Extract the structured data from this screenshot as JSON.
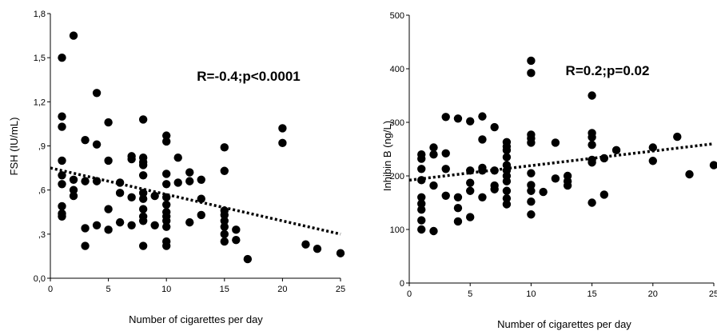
{
  "chart_data": [
    {
      "type": "scatter",
      "title": "",
      "xlabel": "Number of cigarettes per day",
      "ylabel": "FSH (IU/mL)",
      "xlim": [
        0,
        25
      ],
      "ylim": [
        0,
        1.8
      ],
      "xticks": [
        0,
        5,
        10,
        15,
        20,
        25
      ],
      "xtick_labels": [
        "0",
        "5",
        "10",
        "15",
        "20",
        "25"
      ],
      "yticks": [
        0,
        0.3,
        0.6,
        0.9,
        1.2,
        1.5,
        1.8
      ],
      "ytick_labels": [
        "0,0",
        ",3",
        ",6",
        ",9",
        "1,2",
        "1,5",
        "1,8"
      ],
      "grid": false,
      "annotation": "R=-0.4;p<0.0001",
      "trendline": {
        "style": "dotted",
        "x": [
          0,
          25
        ],
        "y": [
          0.75,
          0.3
        ]
      },
      "points": [
        [
          1,
          1.5
        ],
        [
          2,
          1.65
        ],
        [
          1,
          1.1
        ],
        [
          1,
          1.03
        ],
        [
          1,
          0.8
        ],
        [
          1,
          0.7
        ],
        [
          1,
          0.64
        ],
        [
          1,
          0.49
        ],
        [
          1,
          0.44
        ],
        [
          1,
          0.42
        ],
        [
          2,
          0.67
        ],
        [
          2,
          0.6
        ],
        [
          2,
          0.56
        ],
        [
          3,
          0.94
        ],
        [
          3,
          0.66
        ],
        [
          3,
          0.34
        ],
        [
          3,
          0.22
        ],
        [
          4,
          1.26
        ],
        [
          4,
          0.91
        ],
        [
          4,
          0.66
        ],
        [
          4,
          0.36
        ],
        [
          5,
          1.06
        ],
        [
          5,
          0.8
        ],
        [
          5,
          0.47
        ],
        [
          5,
          0.33
        ],
        [
          6,
          0.65
        ],
        [
          6,
          0.58
        ],
        [
          6,
          0.38
        ],
        [
          7,
          0.83
        ],
        [
          7,
          0.81
        ],
        [
          7,
          0.55
        ],
        [
          7,
          0.36
        ],
        [
          8,
          1.08
        ],
        [
          8,
          0.82
        ],
        [
          8,
          0.79
        ],
        [
          8,
          0.77
        ],
        [
          8,
          0.7
        ],
        [
          8,
          0.58
        ],
        [
          8,
          0.54
        ],
        [
          8,
          0.47
        ],
        [
          8,
          0.42
        ],
        [
          8,
          0.39
        ],
        [
          8,
          0.22
        ],
        [
          9,
          0.56
        ],
        [
          9,
          0.36
        ],
        [
          10,
          0.97
        ],
        [
          10,
          0.93
        ],
        [
          10,
          0.71
        ],
        [
          10,
          0.64
        ],
        [
          10,
          0.55
        ],
        [
          10,
          0.5
        ],
        [
          10,
          0.45
        ],
        [
          10,
          0.42
        ],
        [
          10,
          0.39
        ],
        [
          10,
          0.35
        ],
        [
          10,
          0.25
        ],
        [
          10,
          0.22
        ],
        [
          11,
          0.82
        ],
        [
          11,
          0.65
        ],
        [
          12,
          0.72
        ],
        [
          12,
          0.66
        ],
        [
          12,
          0.38
        ],
        [
          13,
          0.67
        ],
        [
          13,
          0.54
        ],
        [
          13,
          0.43
        ],
        [
          15,
          0.89
        ],
        [
          15,
          0.73
        ],
        [
          15,
          0.46
        ],
        [
          15,
          0.43
        ],
        [
          15,
          0.39
        ],
        [
          15,
          0.35
        ],
        [
          15,
          0.3
        ],
        [
          15,
          0.25
        ],
        [
          16,
          0.33
        ],
        [
          16,
          0.26
        ],
        [
          17,
          0.13
        ],
        [
          20,
          1.02
        ],
        [
          20,
          0.92
        ],
        [
          22,
          0.23
        ],
        [
          23,
          0.2
        ],
        [
          25,
          0.17
        ]
      ]
    },
    {
      "type": "scatter",
      "title": "",
      "xlabel": "Number of cigarettes per day",
      "ylabel": "Inhibin B (ng/L)",
      "xlim": [
        0,
        25
      ],
      "ylim": [
        0,
        500
      ],
      "xticks": [
        0,
        5,
        10,
        15,
        20,
        25
      ],
      "xtick_labels": [
        "0",
        "5",
        "10",
        "15",
        "20",
        "25"
      ],
      "yticks": [
        0,
        100,
        200,
        300,
        400,
        500
      ],
      "ytick_labels": [
        "0",
        "100",
        "200",
        "300",
        "400",
        "500"
      ],
      "grid": false,
      "annotation": "R=0.2;p=0.02",
      "trendline": {
        "style": "dotted",
        "x": [
          0,
          25
        ],
        "y": [
          192,
          260
        ]
      },
      "points": [
        [
          1,
          240
        ],
        [
          1,
          232
        ],
        [
          1,
          213
        ],
        [
          1,
          192
        ],
        [
          1,
          160
        ],
        [
          1,
          148
        ],
        [
          1,
          137
        ],
        [
          1,
          117
        ],
        [
          1,
          100
        ],
        [
          2,
          253
        ],
        [
          2,
          240
        ],
        [
          2,
          182
        ],
        [
          2,
          97
        ],
        [
          3,
          310
        ],
        [
          3,
          242
        ],
        [
          3,
          163
        ],
        [
          3,
          213
        ],
        [
          4,
          307
        ],
        [
          4,
          160
        ],
        [
          4,
          140
        ],
        [
          4,
          115
        ],
        [
          5,
          302
        ],
        [
          5,
          210
        ],
        [
          5,
          187
        ],
        [
          5,
          172
        ],
        [
          5,
          123
        ],
        [
          6,
          311
        ],
        [
          6,
          268
        ],
        [
          6,
          215
        ],
        [
          6,
          210
        ],
        [
          6,
          160
        ],
        [
          7,
          291
        ],
        [
          7,
          210
        ],
        [
          7,
          182
        ],
        [
          7,
          175
        ],
        [
          8,
          263
        ],
        [
          8,
          255
        ],
        [
          8,
          248
        ],
        [
          8,
          235
        ],
        [
          8,
          220
        ],
        [
          8,
          210
        ],
        [
          8,
          200
        ],
        [
          8,
          190
        ],
        [
          8,
          172
        ],
        [
          8,
          158
        ],
        [
          8,
          147
        ],
        [
          10,
          415
        ],
        [
          10,
          392
        ],
        [
          10,
          277
        ],
        [
          10,
          270
        ],
        [
          10,
          262
        ],
        [
          10,
          205
        ],
        [
          10,
          183
        ],
        [
          10,
          172
        ],
        [
          10,
          152
        ],
        [
          10,
          128
        ],
        [
          11,
          170
        ],
        [
          12,
          262
        ],
        [
          12,
          195
        ],
        [
          13,
          200
        ],
        [
          13,
          190
        ],
        [
          13,
          182
        ],
        [
          15,
          350
        ],
        [
          15,
          280
        ],
        [
          15,
          272
        ],
        [
          15,
          258
        ],
        [
          15,
          230
        ],
        [
          15,
          225
        ],
        [
          15,
          150
        ],
        [
          16,
          233
        ],
        [
          16,
          165
        ],
        [
          17,
          248
        ],
        [
          20,
          253
        ],
        [
          20,
          228
        ],
        [
          22,
          273
        ],
        [
          23,
          203
        ],
        [
          25,
          220
        ]
      ]
    }
  ]
}
